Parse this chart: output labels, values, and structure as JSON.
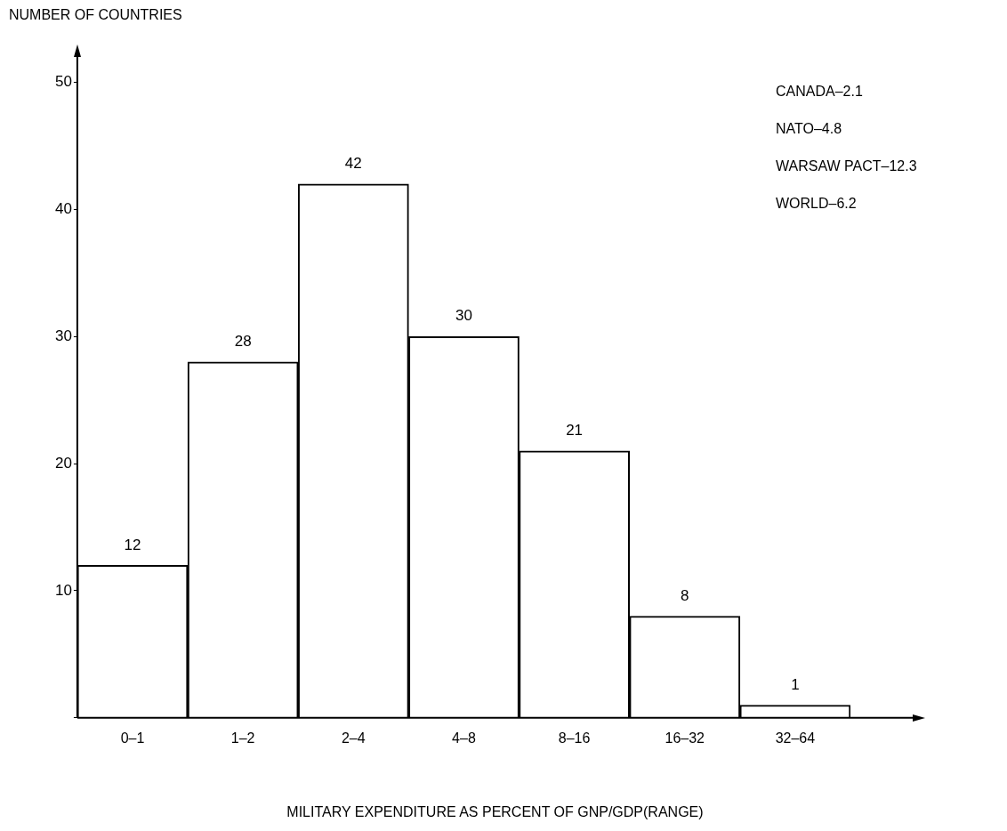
{
  "chart_data": {
    "type": "bar",
    "ylabel": "NUMBER OF COUNTRIES",
    "xlabel": "MILITARY EXPENDITURE AS PERCENT OF GNP/GDP(RANGE)",
    "categories": [
      "0–1",
      "1–2",
      "2–4",
      "4–8",
      "8–16",
      "16–32",
      "32–64"
    ],
    "values": [
      12,
      28,
      42,
      30,
      21,
      8,
      1
    ],
    "color": "#ffffff",
    "ylim": [
      0,
      52
    ],
    "yticks": [
      {
        "value": 0,
        "label": null
      },
      10,
      20,
      30,
      40,
      50
    ],
    "grid": false,
    "legend": false,
    "data_labels": true,
    "annotations": [
      "CANADA–2.1",
      "NATO–4.8",
      "WARSAW PACT–12.3",
      "WORLD–6.2"
    ]
  }
}
